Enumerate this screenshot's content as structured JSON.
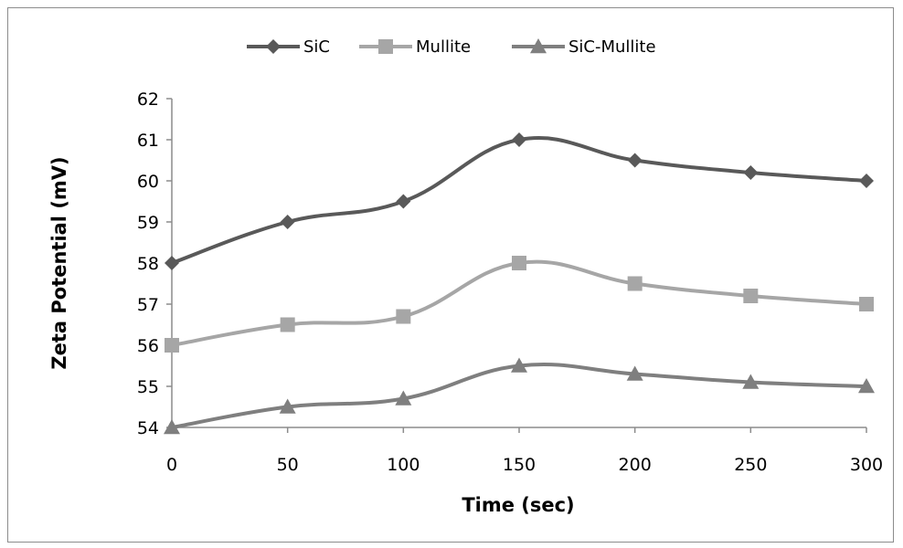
{
  "chart_data": {
    "type": "line",
    "title": "",
    "xlabel": "Time (sec)",
    "ylabel": "Zeta Potential (mV)",
    "x": [
      0,
      50,
      100,
      150,
      200,
      250,
      300
    ],
    "xlim": [
      0,
      300
    ],
    "ylim": [
      54,
      62
    ],
    "xticks": [
      "0",
      "50",
      "100",
      "150",
      "200",
      "250",
      "300"
    ],
    "yticks": [
      "54",
      "55",
      "56",
      "57",
      "58",
      "59",
      "60",
      "61",
      "62"
    ],
    "grid": false,
    "legend_position": "top",
    "smooth": true,
    "series": [
      {
        "name": "SiC",
        "marker": "diamond",
        "color": "#595959",
        "values": [
          58.0,
          59.0,
          59.5,
          61.0,
          60.5,
          60.2,
          60.0
        ]
      },
      {
        "name": "Mullite",
        "marker": "square",
        "color": "#a6a6a6",
        "values": [
          56.0,
          56.5,
          56.7,
          58.0,
          57.5,
          57.2,
          57.0
        ]
      },
      {
        "name": "SiC-Mullite",
        "marker": "triangle",
        "color": "#7f7f7f",
        "values": [
          54.0,
          54.5,
          54.7,
          55.5,
          55.3,
          55.1,
          55.0
        ]
      }
    ]
  }
}
